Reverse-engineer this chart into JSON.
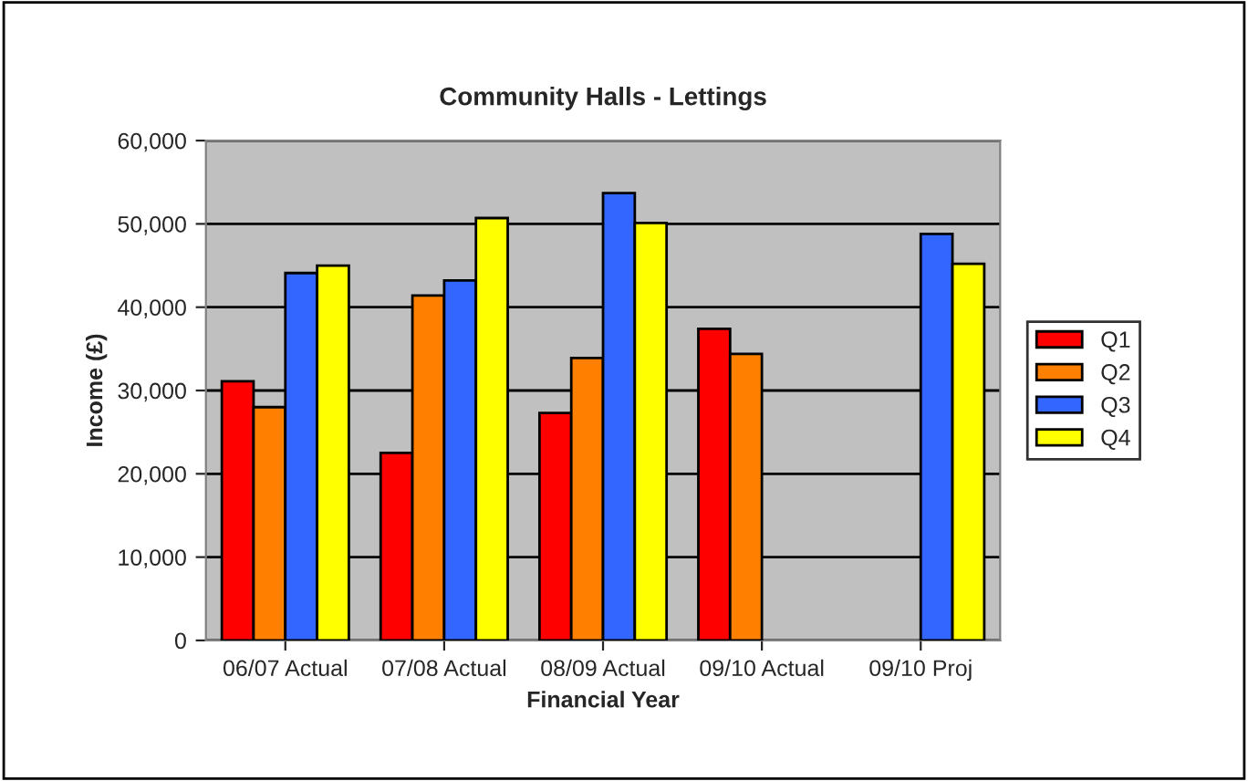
{
  "chart_data": {
    "type": "bar",
    "title": "Community Halls - Lettings",
    "xlabel": "Financial Year",
    "ylabel": "Income (£)",
    "categories": [
      "06/07 Actual",
      "07/08 Actual",
      "08/09 Actual",
      "09/10 Actual",
      "09/10 Proj"
    ],
    "series": [
      {
        "name": "Q1",
        "color": "#ff0000",
        "values": [
          31100,
          22500,
          27300,
          37400,
          null
        ]
      },
      {
        "name": "Q2",
        "color": "#ff8000",
        "values": [
          28000,
          41400,
          33900,
          34400,
          null
        ]
      },
      {
        "name": "Q3",
        "color": "#3366ff",
        "values": [
          44100,
          43200,
          53700,
          null,
          48800
        ]
      },
      {
        "name": "Q4",
        "color": "#ffff00",
        "values": [
          45000,
          50700,
          50100,
          null,
          45200
        ]
      }
    ],
    "ylim": [
      0,
      60000
    ],
    "yticks": [
      {
        "value": 0,
        "label": "0"
      },
      {
        "value": 10000,
        "label": "10,000"
      },
      {
        "value": 20000,
        "label": "20,000"
      },
      {
        "value": 30000,
        "label": "30,000"
      },
      {
        "value": 40000,
        "label": "40,000"
      },
      {
        "value": 50000,
        "label": "50,000"
      },
      {
        "value": 60000,
        "label": "60,000"
      }
    ],
    "grid": "y",
    "legend": "right"
  }
}
